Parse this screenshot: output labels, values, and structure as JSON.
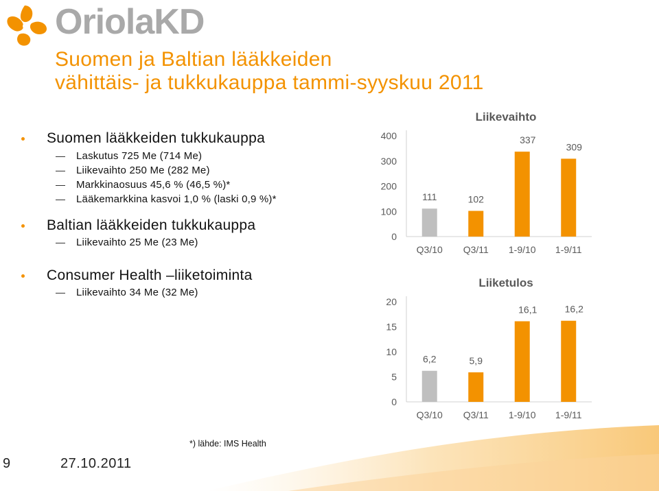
{
  "brand": {
    "logo_text": "OriolaKD"
  },
  "title": {
    "line1": "Suomen ja Baltian lääkkeiden",
    "line2": "vähittäis- ja tukkukauppa tammi-syyskuu 2011"
  },
  "bullets": [
    {
      "text": "Suomen lääkkeiden tukkukauppa",
      "items": [
        "Laskutus 725 Me (714 Me)",
        "Liikevaihto 250 Me (282 Me)",
        "Markkinaosuus 45,6 % (46,5 %)*",
        "Lääkemarkkina kasvoi 1,0 % (laski 0,9 %)*"
      ]
    },
    {
      "text": "Baltian lääkkeiden tukkukauppa",
      "items": [
        "Liikevaihto 25 Me (23 Me)"
      ]
    },
    {
      "text": "Consumer Health –liiketoiminta",
      "items": [
        "Liikevaihto 34 Me (32 Me)"
      ]
    }
  ],
  "chart_data": [
    {
      "type": "bar",
      "title": "Liikevaihto",
      "categories": [
        "Q3/10",
        "Q3/11",
        "1-9/10",
        "1-9/11"
      ],
      "values": [
        111,
        102,
        337,
        309
      ],
      "value_labels": [
        "111",
        "102",
        "337",
        "309"
      ],
      "ylim": [
        0,
        400
      ],
      "yticks": [
        0,
        100,
        200,
        300,
        400
      ],
      "colors": [
        "#bfbfbf",
        "#f39200",
        "#f39200",
        "#f39200"
      ],
      "grid": false
    },
    {
      "type": "bar",
      "title": "Liiketulos",
      "categories": [
        "Q3/10",
        "Q3/11",
        "1-9/10",
        "1-9/11"
      ],
      "values": [
        6.2,
        5.9,
        16.1,
        16.2
      ],
      "value_labels": [
        "6,2",
        "5,9",
        "16,1",
        "16,2"
      ],
      "ylim": [
        0,
        20
      ],
      "yticks": [
        0,
        5,
        10,
        15,
        20
      ],
      "colors": [
        "#bfbfbf",
        "#f39200",
        "#f39200",
        "#f39200"
      ],
      "grid": false
    }
  ],
  "footnote": "*) lähde: IMS Health",
  "footer": {
    "page": "9",
    "date": "27.10.2011"
  },
  "colors": {
    "accent": "#f39200",
    "muted": "#bfbfbf"
  }
}
